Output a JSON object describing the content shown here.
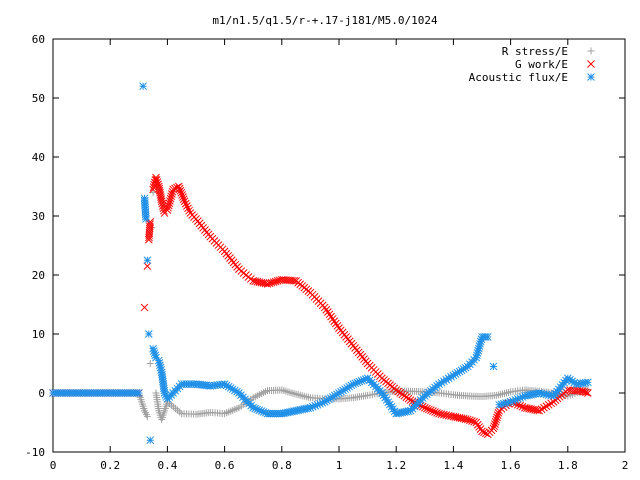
{
  "chart_data": {
    "type": "scatter",
    "title": "m1/n1.5/q1.5/r-+.17-j181/M5.0/1024",
    "xlabel": "",
    "ylabel": "",
    "xlim": [
      0,
      2
    ],
    "ylim": [
      -10,
      60
    ],
    "xticks": [
      "0",
      "0.2",
      "0.4",
      "0.6",
      "0.8",
      "1",
      "1.2",
      "1.4",
      "1.6",
      "1.8",
      "2"
    ],
    "yticks": [
      "-10",
      "0",
      "10",
      "20",
      "30",
      "40",
      "50",
      "60"
    ],
    "grid": false,
    "legend_position": "top-right",
    "series": [
      {
        "name": "R stress/E",
        "marker": "plus",
        "color": "#a0a0a0",
        "x": [
          0.0,
          0.1,
          0.2,
          0.3,
          0.32,
          0.33,
          0.34,
          0.345,
          0.35,
          0.36,
          0.37,
          0.38,
          0.39,
          0.4,
          0.45,
          0.5,
          0.55,
          0.6,
          0.65,
          0.7,
          0.75,
          0.8,
          0.85,
          0.9,
          0.95,
          1.0,
          1.05,
          1.1,
          1.15,
          1.2,
          1.25,
          1.3,
          1.35,
          1.4,
          1.45,
          1.5,
          1.55,
          1.6,
          1.65,
          1.7,
          1.75,
          1.8,
          1.85,
          1.87
        ],
        "y": [
          0,
          0,
          0,
          0,
          -3,
          -4,
          5,
          28,
          34,
          0,
          -3,
          -4.5,
          -3,
          -1.5,
          -3.5,
          -3.6,
          -3.3,
          -3.5,
          -2.5,
          -0.8,
          0.4,
          0.5,
          -0.2,
          -0.8,
          -1,
          -1,
          -0.8,
          -0.4,
          0,
          0.3,
          0.3,
          0.2,
          0,
          -0.3,
          -0.5,
          -0.6,
          -0.4,
          0.2,
          0.5,
          0.3,
          0,
          -0.5,
          0.3,
          0.6
        ]
      },
      {
        "name": "G work/E",
        "marker": "cross",
        "color": "#ff0000",
        "x": [
          0.0,
          0.1,
          0.2,
          0.3,
          0.32,
          0.33,
          0.335,
          0.34,
          0.35,
          0.36,
          0.37,
          0.38,
          0.39,
          0.4,
          0.42,
          0.44,
          0.46,
          0.48,
          0.5,
          0.55,
          0.6,
          0.65,
          0.7,
          0.75,
          0.8,
          0.85,
          0.9,
          0.95,
          1.0,
          1.05,
          1.1,
          1.15,
          1.2,
          1.25,
          1.3,
          1.35,
          1.4,
          1.45,
          1.48,
          1.5,
          1.52,
          1.54,
          1.56,
          1.6,
          1.65,
          1.7,
          1.75,
          1.8,
          1.85,
          1.87
        ],
        "y": [
          0,
          0,
          0,
          0,
          14.5,
          21.5,
          26,
          29,
          34.5,
          36.5,
          35,
          32.5,
          30.5,
          31,
          34.5,
          35,
          32.5,
          30.5,
          29.5,
          26.5,
          24,
          21,
          19,
          18.5,
          19.2,
          19,
          17,
          14.5,
          11,
          8,
          5,
          2.5,
          0.5,
          -1.2,
          -2.5,
          -3.5,
          -4,
          -4.5,
          -5,
          -6.5,
          -7,
          -6,
          -3,
          -1.5,
          -2.5,
          -3,
          -1.5,
          0.5,
          0.3,
          0
        ]
      },
      {
        "name": "Acoustic flux/E",
        "marker": "star",
        "color": "#2090e8",
        "x": [
          0.0,
          0.1,
          0.2,
          0.3,
          0.315,
          0.32,
          0.325,
          0.33,
          0.335,
          0.34,
          0.35,
          0.36,
          0.37,
          0.38,
          0.39,
          0.4,
          0.42,
          0.45,
          0.5,
          0.55,
          0.6,
          0.65,
          0.7,
          0.75,
          0.8,
          0.85,
          0.9,
          0.95,
          1.0,
          1.05,
          1.1,
          1.15,
          1.2,
          1.25,
          1.3,
          1.35,
          1.4,
          1.45,
          1.48,
          1.5,
          1.52,
          1.54,
          1.56,
          1.6,
          1.65,
          1.7,
          1.75,
          1.8,
          1.83,
          1.87
        ],
        "y": [
          0,
          0,
          0,
          0,
          52,
          33,
          29.5,
          22.5,
          10,
          -8,
          7.5,
          6,
          5.5,
          3.5,
          0,
          -1,
          0,
          1.5,
          1.5,
          1.2,
          1.5,
          0,
          -2.5,
          -3.5,
          -3.5,
          -3,
          -2.5,
          -1.5,
          0,
          1.5,
          2.5,
          0,
          -3.5,
          -3,
          -0.5,
          1.5,
          3,
          4.5,
          6,
          9.5,
          9.5,
          4.5,
          -2,
          -1.5,
          -0.5,
          0,
          -0.5,
          2.5,
          1.5,
          1.8
        ]
      }
    ]
  }
}
